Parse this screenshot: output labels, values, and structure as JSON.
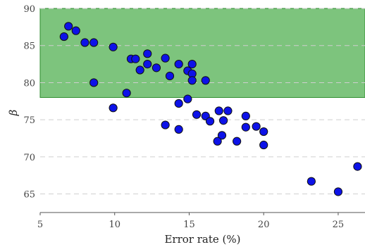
{
  "chart_data": {
    "type": "scatter",
    "title": "",
    "xlabel": "Error rate (%)",
    "ylabel": "β",
    "xlim": [
      5,
      26.8
    ],
    "ylim": [
      62.5,
      90
    ],
    "xticks": [
      5,
      10,
      15,
      20,
      25
    ],
    "yticks": [
      65,
      70,
      75,
      80,
      85,
      90
    ],
    "grid": "horizontal dashed",
    "legend": "none",
    "highlight_region": {
      "y_from": 78,
      "y_to": 90,
      "color": "#3fa83f"
    },
    "marker_color": "#0d12e8",
    "series": [
      {
        "points": [
          {
            "x": 6.6,
            "y": 86.2
          },
          {
            "x": 6.9,
            "y": 87.6
          },
          {
            "x": 7.4,
            "y": 87.0
          },
          {
            "x": 8.0,
            "y": 85.4
          },
          {
            "x": 8.6,
            "y": 85.4
          },
          {
            "x": 9.9,
            "y": 84.8
          },
          {
            "x": 8.6,
            "y": 80.0
          },
          {
            "x": 10.8,
            "y": 78.6
          },
          {
            "x": 9.9,
            "y": 76.6
          },
          {
            "x": 11.1,
            "y": 83.2
          },
          {
            "x": 11.4,
            "y": 83.2
          },
          {
            "x": 12.2,
            "y": 83.9
          },
          {
            "x": 11.7,
            "y": 81.7
          },
          {
            "x": 12.2,
            "y": 82.5
          },
          {
            "x": 12.8,
            "y": 82.0
          },
          {
            "x": 13.4,
            "y": 83.3
          },
          {
            "x": 13.7,
            "y": 80.9
          },
          {
            "x": 14.3,
            "y": 82.5
          },
          {
            "x": 14.9,
            "y": 81.6
          },
          {
            "x": 15.2,
            "y": 81.2
          },
          {
            "x": 15.2,
            "y": 80.3
          },
          {
            "x": 15.2,
            "y": 82.5
          },
          {
            "x": 16.1,
            "y": 80.3
          },
          {
            "x": 14.9,
            "y": 77.8
          },
          {
            "x": 14.3,
            "y": 77.2
          },
          {
            "x": 13.4,
            "y": 74.3
          },
          {
            "x": 14.3,
            "y": 73.7
          },
          {
            "x": 15.5,
            "y": 75.7
          },
          {
            "x": 16.1,
            "y": 75.5
          },
          {
            "x": 16.4,
            "y": 74.8
          },
          {
            "x": 17.0,
            "y": 76.2
          },
          {
            "x": 17.3,
            "y": 74.9
          },
          {
            "x": 17.6,
            "y": 76.2
          },
          {
            "x": 17.2,
            "y": 72.9
          },
          {
            "x": 16.9,
            "y": 72.1
          },
          {
            "x": 18.2,
            "y": 72.1
          },
          {
            "x": 18.8,
            "y": 75.5
          },
          {
            "x": 18.8,
            "y": 74.0
          },
          {
            "x": 19.5,
            "y": 74.1
          },
          {
            "x": 20.0,
            "y": 73.4
          },
          {
            "x": 20.0,
            "y": 71.6
          },
          {
            "x": 23.2,
            "y": 66.7
          },
          {
            "x": 25.0,
            "y": 65.3
          },
          {
            "x": 26.3,
            "y": 68.7
          }
        ]
      }
    ]
  }
}
